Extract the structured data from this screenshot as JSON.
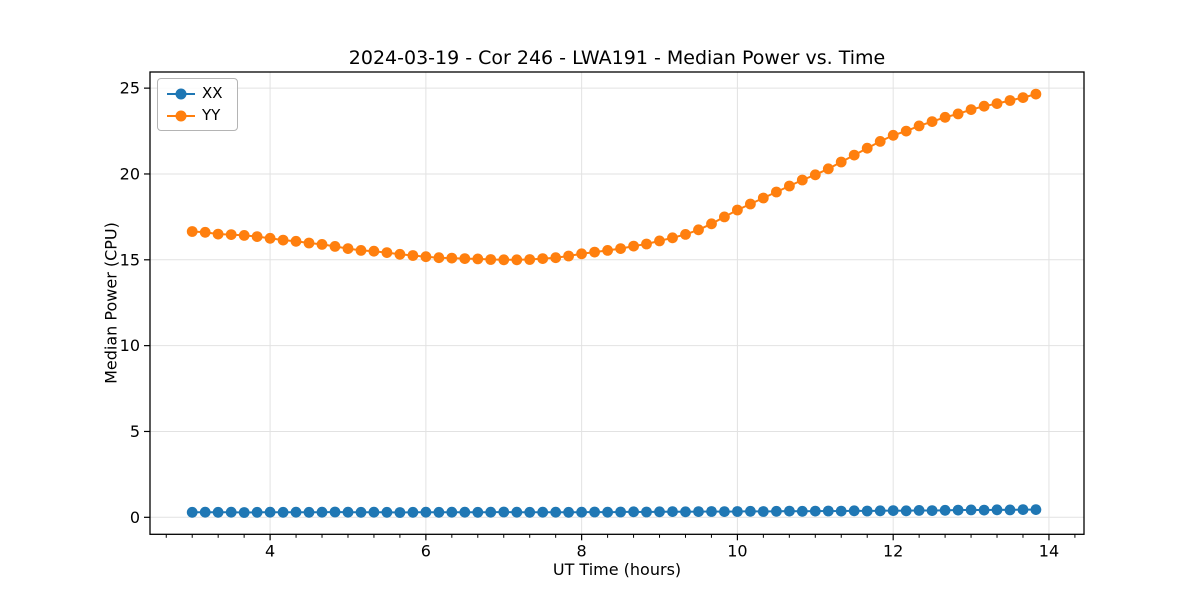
{
  "chart_data": {
    "type": "line",
    "title": "2024-03-19 - Cor 246 - LWA191 - Median Power vs. Time",
    "xlabel": "UT Time (hours)",
    "ylabel": "Median Power (CPU)",
    "xlim": [
      2.458,
      14.45
    ],
    "ylim": [
      -0.99,
      25.94
    ],
    "x_ticks": [
      4,
      6,
      8,
      10,
      12,
      14
    ],
    "y_ticks": [
      0,
      5,
      10,
      15,
      20,
      25
    ],
    "x_minor_step": 0.33333,
    "grid": true,
    "legend_position": "upper-left",
    "x": [
      3.0,
      3.167,
      3.333,
      3.5,
      3.667,
      3.833,
      4.0,
      4.167,
      4.333,
      4.5,
      4.667,
      4.833,
      5.0,
      5.167,
      5.333,
      5.5,
      5.667,
      5.833,
      6.0,
      6.167,
      6.333,
      6.5,
      6.667,
      6.833,
      7.0,
      7.167,
      7.333,
      7.5,
      7.667,
      7.833,
      8.0,
      8.167,
      8.333,
      8.5,
      8.667,
      8.833,
      9.0,
      9.167,
      9.333,
      9.5,
      9.667,
      9.833,
      10.0,
      10.167,
      10.333,
      10.5,
      10.667,
      10.833,
      11.0,
      11.167,
      11.333,
      11.5,
      11.667,
      11.833,
      12.0,
      12.167,
      12.333,
      12.5,
      12.667,
      12.833,
      13.0,
      13.167,
      13.333,
      13.5,
      13.667,
      13.833
    ],
    "series": [
      {
        "name": "XX",
        "color": "#1f77b4",
        "values": [
          0.29,
          0.3,
          0.29,
          0.3,
          0.28,
          0.29,
          0.3,
          0.29,
          0.3,
          0.29,
          0.3,
          0.31,
          0.3,
          0.29,
          0.3,
          0.29,
          0.28,
          0.29,
          0.3,
          0.29,
          0.3,
          0.3,
          0.29,
          0.3,
          0.31,
          0.3,
          0.29,
          0.3,
          0.3,
          0.29,
          0.3,
          0.31,
          0.3,
          0.31,
          0.32,
          0.31,
          0.32,
          0.33,
          0.32,
          0.33,
          0.34,
          0.33,
          0.34,
          0.35,
          0.34,
          0.35,
          0.36,
          0.35,
          0.36,
          0.37,
          0.36,
          0.38,
          0.37,
          0.38,
          0.39,
          0.38,
          0.4,
          0.39,
          0.41,
          0.42,
          0.43,
          0.42,
          0.44,
          0.43,
          0.45,
          0.45
        ]
      },
      {
        "name": "YY",
        "color": "#ff7f0e",
        "values": [
          16.65,
          16.6,
          16.5,
          16.47,
          16.42,
          16.35,
          16.25,
          16.15,
          16.08,
          15.98,
          15.9,
          15.78,
          15.65,
          15.55,
          15.5,
          15.42,
          15.32,
          15.25,
          15.18,
          15.12,
          15.1,
          15.07,
          15.05,
          15.02,
          15.0,
          15.0,
          15.02,
          15.07,
          15.12,
          15.22,
          15.35,
          15.45,
          15.55,
          15.65,
          15.8,
          15.92,
          16.1,
          16.28,
          16.48,
          16.75,
          17.1,
          17.5,
          17.9,
          18.25,
          18.6,
          18.95,
          19.3,
          19.65,
          19.95,
          20.3,
          20.7,
          21.1,
          21.5,
          21.9,
          22.25,
          22.5,
          22.8,
          23.05,
          23.3,
          23.5,
          23.75,
          23.95,
          24.1,
          24.28,
          24.45,
          24.65
        ]
      }
    ],
    "colors": {
      "grid": "#e2e2e2",
      "spine": "#000000",
      "tick": "#000000",
      "text": "#000000"
    }
  }
}
